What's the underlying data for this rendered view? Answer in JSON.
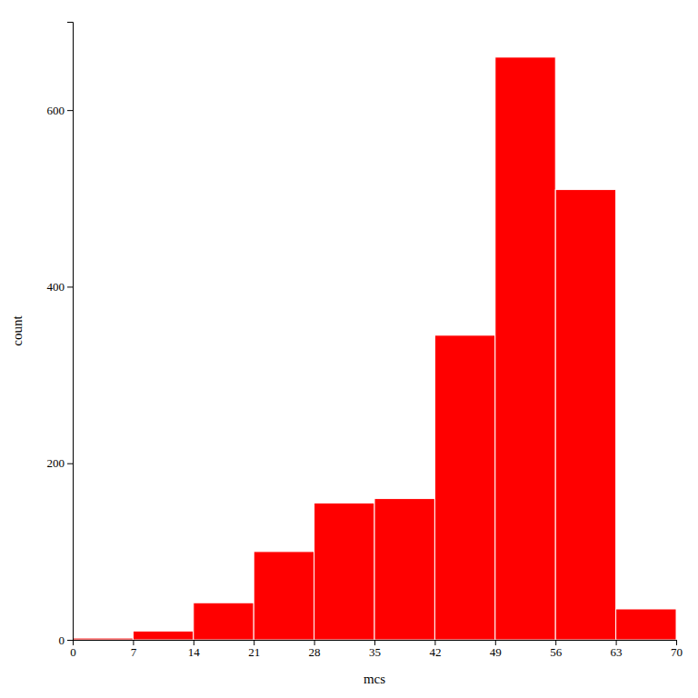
{
  "chart_data": {
    "type": "histogram",
    "bins": [
      0,
      7,
      14,
      21,
      28,
      35,
      42,
      49,
      56,
      63,
      70
    ],
    "values": [
      2,
      10,
      42,
      100,
      155,
      160,
      345,
      660,
      510,
      35
    ],
    "color": "#FF0000",
    "xlabel": "mcs",
    "ylabel": "count",
    "xlim": [
      0,
      70
    ],
    "ylim": [
      0,
      700
    ],
    "xticks": [
      0,
      7,
      14,
      21,
      28,
      35,
      42,
      49,
      56,
      63,
      70
    ],
    "yticks": [
      0,
      200,
      400,
      600
    ],
    "grid": false
  }
}
